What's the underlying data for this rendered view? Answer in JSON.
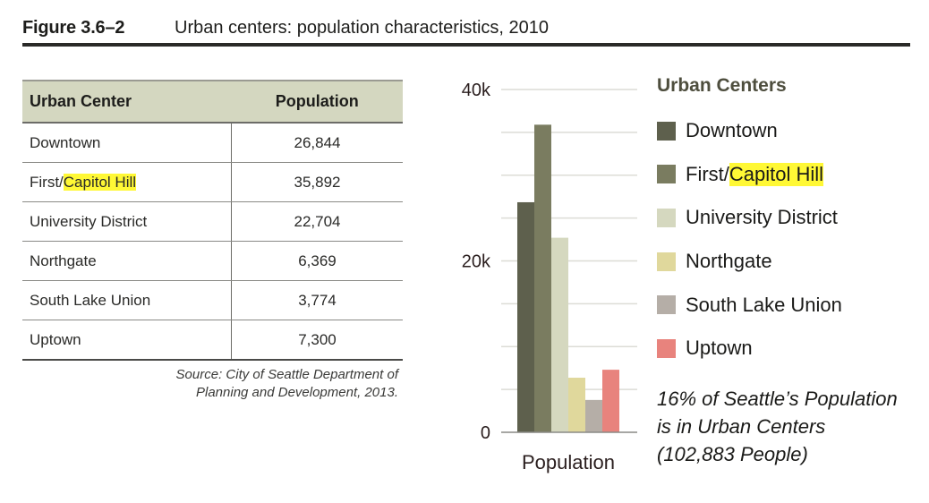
{
  "figure": {
    "number": "Figure 3.6–2",
    "title": "Urban centers: population characteristics, 2010"
  },
  "table": {
    "headers": [
      "Urban Center",
      "Population"
    ],
    "rows": [
      {
        "name_pre": "Downtown",
        "name_hl": "",
        "population": "26,844"
      },
      {
        "name_pre": "First/",
        "name_hl": "Capitol Hill",
        "population": "35,892"
      },
      {
        "name_pre": "University District",
        "name_hl": "",
        "population": "22,704"
      },
      {
        "name_pre": "Northgate",
        "name_hl": "",
        "population": "6,369"
      },
      {
        "name_pre": "South Lake Union",
        "name_hl": "",
        "population": "3,774"
      },
      {
        "name_pre": "Uptown",
        "name_hl": "",
        "population": "7,300"
      }
    ],
    "source": "Source: City of Seattle Department of Planning and Development, 2013."
  },
  "chart_data": {
    "type": "bar",
    "title": "",
    "xlabel": "Population",
    "ylabel": "",
    "categories": [
      "Population"
    ],
    "ylim": [
      0,
      40000
    ],
    "yticks": [
      0,
      20000,
      40000
    ],
    "ytick_labels": [
      "0",
      "20k",
      "40k"
    ],
    "gridlines": [
      5000,
      10000,
      15000,
      20000,
      25000,
      30000,
      35000,
      40000
    ],
    "grid": true,
    "legend_title": "Urban Centers",
    "legend_position": "right",
    "series": [
      {
        "name_pre": "Downtown",
        "name_hl": "",
        "values": [
          26844
        ],
        "color": "#5e604d"
      },
      {
        "name_pre": "First/",
        "name_hl": "Capitol Hill",
        "values": [
          35892
        ],
        "color": "#7a7c60"
      },
      {
        "name_pre": "University District",
        "name_hl": "",
        "values": [
          22704
        ],
        "color": "#d5d8bf"
      },
      {
        "name_pre": "Northgate",
        "name_hl": "",
        "values": [
          6369
        ],
        "color": "#e0d89c"
      },
      {
        "name_pre": "South Lake Union",
        "name_hl": "",
        "values": [
          3774
        ],
        "color": "#b5aea7"
      },
      {
        "name_pre": "Uptown",
        "name_hl": "",
        "values": [
          7300
        ],
        "color": "#e8837d"
      }
    ],
    "annotation": {
      "line1": "16% of Seattle’s Population",
      "line2": "is in Urban Centers",
      "line3": "(102,883 People)"
    }
  }
}
